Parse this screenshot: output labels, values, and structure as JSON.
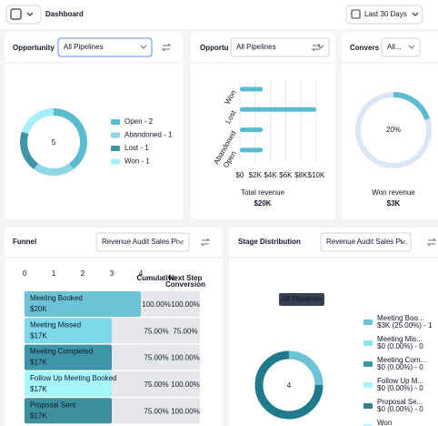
{
  "header": {
    "title": "Dashboard",
    "date_range": "Last 30 Days"
  },
  "opportunity_status": {
    "title": "Opportunity",
    "pipeline": "All Pipelines",
    "total": "5",
    "segments": [
      {
        "label": "Open - 2",
        "value": 2,
        "color": "#5bbcd0"
      },
      {
        "label": "Abandoned - 1",
        "value": 1,
        "color": "#8fd6e6"
      },
      {
        "label": "Lost - 1",
        "value": 1,
        "color": "#3e95a8"
      },
      {
        "label": "Won - 1",
        "value": 1,
        "color": "#a6f0fa"
      }
    ]
  },
  "opportunity_value": {
    "title": "Opportu",
    "pipeline": "All Pipelines",
    "categories": [
      "Won",
      "Lost",
      "Abandoned",
      "Open"
    ],
    "values": [
      3000,
      10000,
      3000,
      3000
    ],
    "color": "#5bbcd0",
    "xlim": [
      0,
      10000
    ],
    "xticks": [
      {
        "value": 0,
        "label": "$0"
      },
      {
        "value": 2000,
        "label": "$2K"
      },
      {
        "value": 4000,
        "label": "$4K"
      },
      {
        "value": 6000,
        "label": "$6K"
      },
      {
        "value": 8000,
        "label": "$8K"
      },
      {
        "value": 10000,
        "label": "$10K"
      }
    ],
    "footer_label": "Total revenue",
    "footer_value": "$20K"
  },
  "conversion": {
    "title": "Convers",
    "pipeline": "All...",
    "value": 20,
    "value_label": "20%",
    "color": "#5bbcd0",
    "footer_label": "Won revenue",
    "footer_value": "$3K"
  },
  "funnel": {
    "title": "Funnel",
    "pipeline": "Revenue Audit Sales Pi...",
    "xlim": [
      0,
      4
    ],
    "xticks": [
      0,
      1,
      2,
      3,
      4
    ],
    "columns": [
      "Cumulative",
      "Next Step",
      "Conversion"
    ],
    "stages": [
      {
        "name": "Meeting Booked",
        "amount": "$20K",
        "value": 4,
        "color": "#6cc3d5",
        "cumulative": "100.00%",
        "next": "100.00%"
      },
      {
        "name": "Meeting Missed",
        "amount": "$17K",
        "value": 3,
        "color": "#7dd8ea",
        "cumulative": "75.00%",
        "next": "75.00%"
      },
      {
        "name": "Meeting Completed",
        "amount": "$17K",
        "value": 3,
        "color": "#3e95a8",
        "cumulative": "75.00%",
        "next": "100.00%"
      },
      {
        "name": "Follow Up Meeting Booked",
        "amount": "$17K",
        "value": 3,
        "color": "#a6f6fd",
        "cumulative": "75.00%",
        "next": "100.00%"
      },
      {
        "name": "Proposal Sent",
        "amount": "$17K",
        "value": 3,
        "color": "#3d8fa0",
        "cumulative": "75.00%",
        "next": "100.00%"
      }
    ]
  },
  "stage_distribution": {
    "title": "Stage Distribution",
    "pipeline": "Revenue Audit Sales Pi...",
    "tooltip": "All Pipelines",
    "total": "4",
    "segments": [
      {
        "value": 1,
        "color": "#6cc3d5"
      },
      {
        "value": 3,
        "color": "#1f7a8c"
      }
    ],
    "legend": [
      {
        "name": "Meeting Boo...",
        "detail": "$3K (25.00%) - 1",
        "color": "#6cc3d5"
      },
      {
        "name": "Meeting Mis...",
        "detail": "$0 (0.00%) - 0",
        "color": "#8fe3f0"
      },
      {
        "name": "Meeting Com...",
        "detail": "$0 (0.00%) - 0",
        "color": "#3e95a8"
      },
      {
        "name": "Follow Up M...",
        "detail": "$0 (0.00%) - 0",
        "color": "#a6f6fd"
      },
      {
        "name": "Proposal Se...",
        "detail": "$0 (0.00%) - 0",
        "color": "#2f7f8f"
      },
      {
        "name": "Won",
        "color": "#b7f4fb"
      }
    ]
  }
}
